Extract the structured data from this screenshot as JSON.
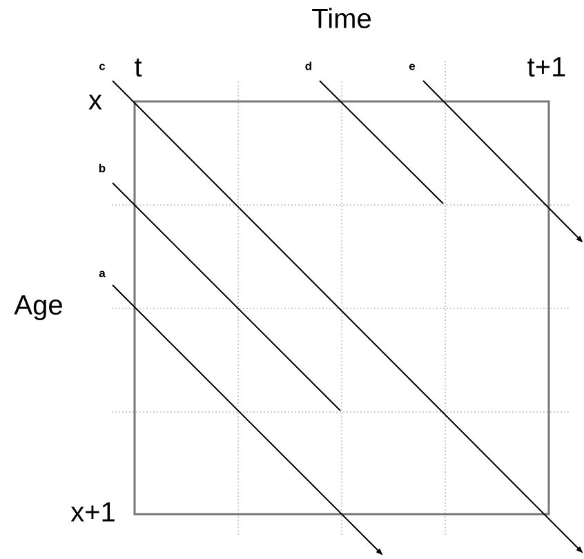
{
  "time_label": "Time",
  "age_label": "Age",
  "time_ticks": [
    "t",
    "t+1"
  ],
  "age_ticks": [
    "x",
    "x+1"
  ],
  "lifelines": [
    {
      "label": "a"
    },
    {
      "label": "b"
    },
    {
      "label": "c"
    },
    {
      "label": "d"
    },
    {
      "label": "e"
    }
  ]
}
